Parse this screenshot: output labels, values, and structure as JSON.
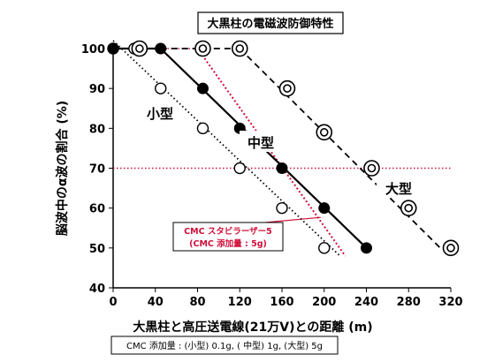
{
  "chart_data": {
    "type": "line",
    "title": "大黒柱の電磁波防御特性",
    "xlabel": "大黒柱と高圧送電線(21万V)との距離 (m)",
    "ylabel": "脳波中のα波の割合 (%)",
    "xlim": [
      0,
      320
    ],
    "ylim": [
      40,
      100
    ],
    "x_ticks": [
      "0",
      "40",
      "80",
      "120",
      "160",
      "200",
      "240",
      "280",
      "320"
    ],
    "y_ticks": [
      "40",
      "50",
      "60",
      "70",
      "80",
      "90",
      "100"
    ],
    "series": [
      {
        "name": "小型",
        "style": "dotted",
        "marker": "open-circle",
        "points": [
          [
            0,
            100
          ],
          [
            20,
            100
          ],
          [
            45,
            90
          ],
          [
            85,
            80
          ],
          [
            120,
            70
          ],
          [
            160,
            60
          ],
          [
            200,
            50
          ]
        ],
        "fit": [
          [
            0,
            102
          ],
          [
            215,
            48
          ]
        ]
      },
      {
        "name": "中型",
        "style": "solid",
        "marker": "filled-circle",
        "points": [
          [
            0,
            100
          ],
          [
            45,
            100
          ],
          [
            85,
            90
          ],
          [
            120,
            80
          ],
          [
            160,
            70
          ],
          [
            200,
            60
          ],
          [
            240,
            50
          ]
        ],
        "fit": [
          [
            45,
            100
          ],
          [
            240,
            50
          ]
        ]
      },
      {
        "name": "大型",
        "style": "dashed",
        "marker": "double-circle",
        "points": [
          [
            25,
            100
          ],
          [
            85,
            100
          ],
          [
            120,
            100
          ],
          [
            165,
            90
          ],
          [
            200,
            79
          ],
          [
            245,
            70
          ],
          [
            280,
            60
          ],
          [
            320,
            50
          ]
        ],
        "fit": [
          [
            120,
            100
          ],
          [
            310,
            50
          ]
        ]
      }
    ],
    "reference_lines": {
      "horizontal": [
        {
          "y": 70,
          "color": "#d0103a",
          "style": "dotted"
        }
      ],
      "diagonal": [
        {
          "from": [
            80,
            100
          ],
          "to": [
            220,
            48
          ],
          "color": "#d0103a",
          "style": "dotted"
        }
      ]
    },
    "annotation": {
      "lines": [
        "CMC スタビラーザー5",
        "(CMC 添加量 : 5g)"
      ],
      "color": "#d0103a"
    },
    "footnote": "CMC 添加量 : (小型) 0.1g, ( 中型) 1g, (大型) 5g",
    "grid": false,
    "colors": {
      "axis": "#000000",
      "accent": "#d0103a"
    }
  }
}
